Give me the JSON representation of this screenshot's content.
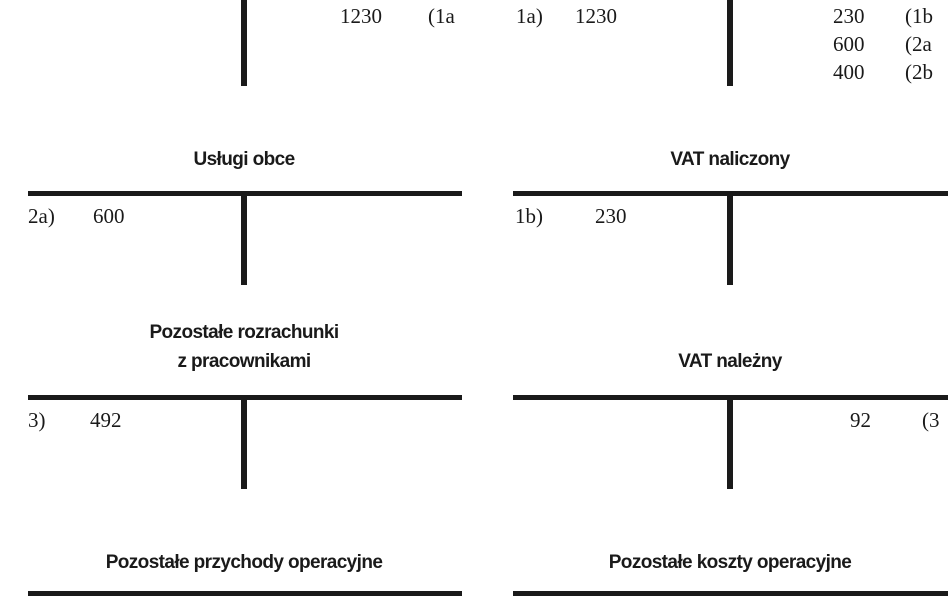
{
  "top": {
    "left": {
      "entries": [
        {
          "amount": "1230",
          "ref": "(1a"
        }
      ]
    },
    "right": {
      "debit": [
        {
          "ref": "1a)",
          "amount": "1230"
        }
      ],
      "credit": [
        {
          "amount": "230",
          "ref": "(1b"
        },
        {
          "amount": "600",
          "ref": "(2a"
        },
        {
          "amount": "400",
          "ref": "(2b"
        }
      ]
    }
  },
  "accounts": {
    "uslugi_obce": {
      "title": "Usługi obce",
      "debit": [
        {
          "ref": "2a)",
          "amount": "600"
        }
      ]
    },
    "vat_naliczony": {
      "title": "VAT naliczony",
      "debit": [
        {
          "ref": "1b)",
          "amount": "230"
        }
      ]
    },
    "pozostale_rozrachunki": {
      "title_line1": "Pozostałe rozrachunki",
      "title_line2": "z pracownikami",
      "debit": [
        {
          "ref": "3)",
          "amount": "492"
        }
      ]
    },
    "vat_nalezny": {
      "title": "VAT należny",
      "credit": [
        {
          "amount": "92",
          "ref": "(3"
        }
      ]
    },
    "pozostale_przychody": {
      "title": "Pozostałe przychody operacyjne"
    },
    "pozostale_koszty": {
      "title": "Pozostałe koszty operacyjne"
    }
  }
}
